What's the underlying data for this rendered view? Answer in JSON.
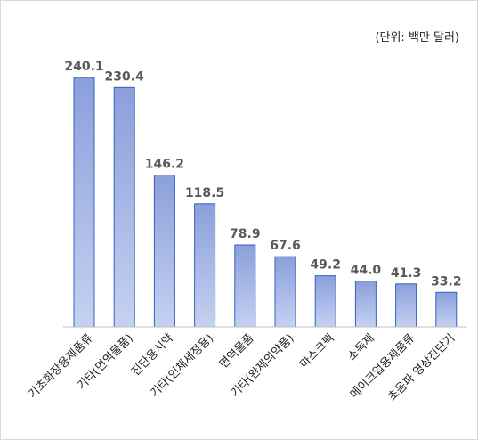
{
  "chart_data": {
    "type": "bar",
    "unit_note": "(단위: 백만 달러)",
    "categories": [
      "기초화장용제품류",
      "기타(면역물품)",
      "진단용시약",
      "기타(인체세정용)",
      "면역물품",
      "기타(완제의약품)",
      "마스크팩",
      "소독제",
      "메이크업용제품류",
      "초음파 영상진단기"
    ],
    "values": [
      240.1,
      230.4,
      146.2,
      118.5,
      78.9,
      67.6,
      49.2,
      44.0,
      41.3,
      33.2
    ],
    "value_labels": [
      "240.1",
      "230.4",
      "146.2",
      "118.5",
      "78.9",
      "67.6",
      "49.2",
      "44.0",
      "41.3",
      "33.2"
    ],
    "ylim": [
      0,
      240.1
    ],
    "grid": false,
    "legend": "none",
    "colors": {
      "bar_top": "#8aa0db",
      "bar_bottom": "#c5d1f1",
      "bar_stroke": "#3a5fc0",
      "value_label": "#595959",
      "axis": "#bfbfbf"
    }
  }
}
